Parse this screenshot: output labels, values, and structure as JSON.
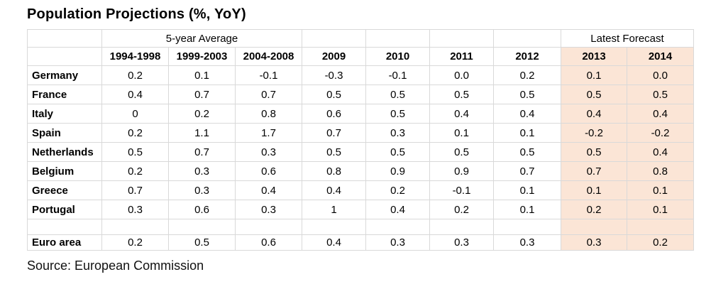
{
  "header": {
    "title": "Population Projections (%, YoY)"
  },
  "footer": {
    "source": "Source: European Commission"
  },
  "table": {
    "group_headers": [
      {
        "label": "",
        "span": 1,
        "name": "corner-blank-cell"
      },
      {
        "label": "5-year Average",
        "span": 3,
        "name": "group-header-5yr-average"
      },
      {
        "label": "",
        "span": 1,
        "name": "group-header-blank-2009"
      },
      {
        "label": "",
        "span": 1,
        "name": "group-header-blank-2010"
      },
      {
        "label": "",
        "span": 1,
        "name": "group-header-blank-2011"
      },
      {
        "label": "",
        "span": 1,
        "name": "group-header-blank-2012"
      },
      {
        "label": "Latest Forecast",
        "span": 2,
        "name": "group-header-latest-forecast"
      }
    ],
    "columns": [
      "1994-1998",
      "1999-2003",
      "2004-2008",
      "2009",
      "2010",
      "2011",
      "2012",
      "2013",
      "2014"
    ],
    "forecast_start_index": 7,
    "rows": [
      {
        "label": "Germany",
        "values": [
          "0.2",
          "0.1",
          "-0.1",
          "-0.3",
          "-0.1",
          "0.0",
          "0.2",
          "0.1",
          "0.0"
        ]
      },
      {
        "label": "France",
        "values": [
          "0.4",
          "0.7",
          "0.7",
          "0.5",
          "0.5",
          "0.5",
          "0.5",
          "0.5",
          "0.5"
        ]
      },
      {
        "label": "Italy",
        "values": [
          "0",
          "0.2",
          "0.8",
          "0.6",
          "0.5",
          "0.4",
          "0.4",
          "0.4",
          "0.4"
        ]
      },
      {
        "label": "Spain",
        "values": [
          "0.2",
          "1.1",
          "1.7",
          "0.7",
          "0.3",
          "0.1",
          "0.1",
          "-0.2",
          "-0.2"
        ]
      },
      {
        "label": "Netherlands",
        "values": [
          "0.5",
          "0.7",
          "0.3",
          "0.5",
          "0.5",
          "0.5",
          "0.5",
          "0.5",
          "0.4"
        ]
      },
      {
        "label": "Belgium",
        "values": [
          "0.2",
          "0.3",
          "0.6",
          "0.8",
          "0.9",
          "0.9",
          "0.7",
          "0.7",
          "0.8"
        ]
      },
      {
        "label": "Greece",
        "values": [
          "0.7",
          "0.3",
          "0.4",
          "0.4",
          "0.2",
          "-0.1",
          "0.1",
          "0.1",
          "0.1"
        ]
      },
      {
        "label": "Portugal",
        "values": [
          "0.3",
          "0.6",
          "0.3",
          "1",
          "0.4",
          "0.2",
          "0.1",
          "0.2",
          "0.1"
        ]
      },
      {
        "label": "",
        "values": [
          "",
          "",
          "",
          "",
          "",
          "",
          "",
          "",
          ""
        ],
        "empty": true
      },
      {
        "label": "Euro area",
        "values": [
          "0.2",
          "0.5",
          "0.6",
          "0.4",
          "0.3",
          "0.3",
          "0.3",
          "0.3",
          "0.2"
        ]
      }
    ],
    "colors": {
      "forecast_bg": "#FBE5D6",
      "grid": "#D9D9D9"
    }
  },
  "chart_data": {
    "type": "table",
    "title": "Population Projections (%, YoY)",
    "columns": [
      "1994-1998",
      "1999-2003",
      "2004-2008",
      "2009",
      "2010",
      "2011",
      "2012",
      "2013",
      "2014"
    ],
    "column_groups": [
      {
        "label": "5-year Average",
        "columns": [
          "1994-1998",
          "1999-2003",
          "2004-2008"
        ]
      },
      {
        "label": "Latest Forecast",
        "columns": [
          "2013",
          "2014"
        ]
      }
    ],
    "rows": [
      {
        "label": "Germany",
        "values": [
          0.2,
          0.1,
          -0.1,
          -0.3,
          -0.1,
          0.0,
          0.2,
          0.1,
          0.0
        ]
      },
      {
        "label": "France",
        "values": [
          0.4,
          0.7,
          0.7,
          0.5,
          0.5,
          0.5,
          0.5,
          0.5,
          0.5
        ]
      },
      {
        "label": "Italy",
        "values": [
          0,
          0.2,
          0.8,
          0.6,
          0.5,
          0.4,
          0.4,
          0.4,
          0.4
        ]
      },
      {
        "label": "Spain",
        "values": [
          0.2,
          1.1,
          1.7,
          0.7,
          0.3,
          0.1,
          0.1,
          -0.2,
          -0.2
        ]
      },
      {
        "label": "Netherlands",
        "values": [
          0.5,
          0.7,
          0.3,
          0.5,
          0.5,
          0.5,
          0.5,
          0.5,
          0.4
        ]
      },
      {
        "label": "Belgium",
        "values": [
          0.2,
          0.3,
          0.6,
          0.8,
          0.9,
          0.9,
          0.7,
          0.7,
          0.8
        ]
      },
      {
        "label": "Greece",
        "values": [
          0.7,
          0.3,
          0.4,
          0.4,
          0.2,
          -0.1,
          0.1,
          0.1,
          0.1
        ]
      },
      {
        "label": "Portugal",
        "values": [
          0.3,
          0.6,
          0.3,
          1,
          0.4,
          0.2,
          0.1,
          0.2,
          0.1
        ]
      },
      {
        "label": "Euro area",
        "values": [
          0.2,
          0.5,
          0.6,
          0.4,
          0.3,
          0.3,
          0.3,
          0.3,
          0.2
        ]
      }
    ],
    "highlight": {
      "label": "Latest Forecast",
      "columns": [
        "2013",
        "2014"
      ],
      "background": "#FBE5D6"
    },
    "source": "Source: European Commission"
  }
}
